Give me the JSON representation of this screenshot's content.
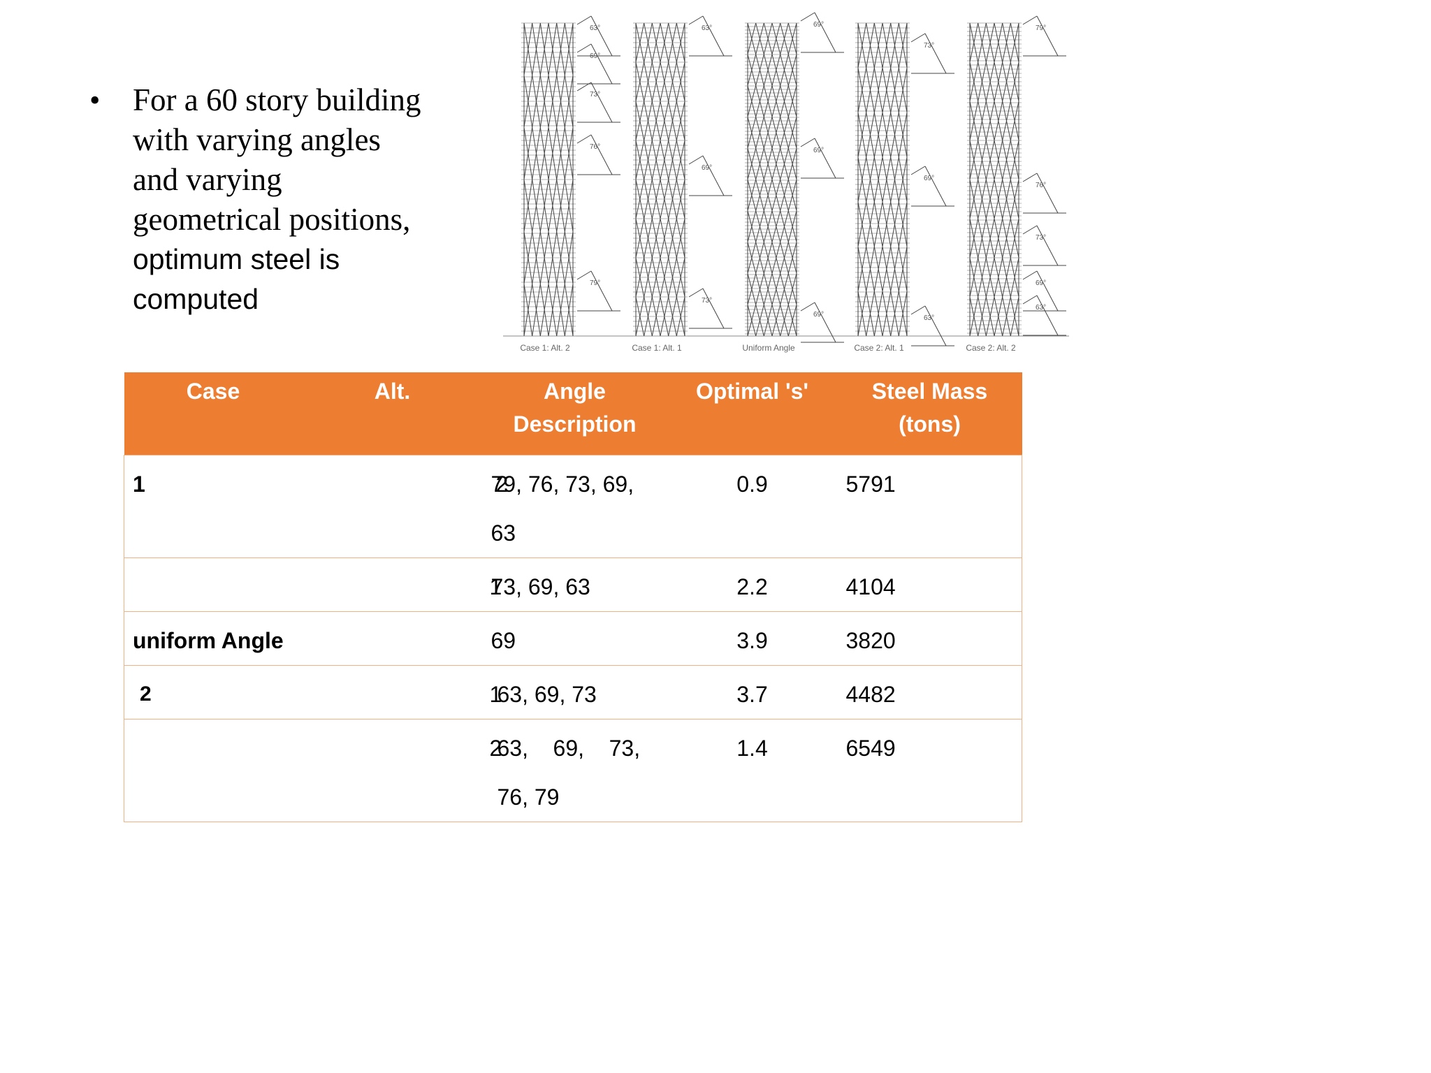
{
  "bullet": {
    "line1": "For a 60 story building",
    "line2": "with varying angles",
    "line3": "and varying",
    "line4": "geometrical positions,",
    "line5": "optimum steel is",
    "line6": "computed"
  },
  "diagram": {
    "towers": [
      {
        "label": "Case 1: Alt. 2",
        "angles": [
          "63°",
          "69°",
          "73°",
          "76°",
          "79°"
        ]
      },
      {
        "label": "Case 1: Alt. 1",
        "angles": [
          "63°",
          "69°",
          "73°"
        ]
      },
      {
        "label": "Uniform Angle",
        "angles": [
          "69°",
          "69°",
          "69°"
        ]
      },
      {
        "label": "Case 2: Alt. 1",
        "angles": [
          "73°",
          "69°",
          "63°"
        ]
      },
      {
        "label": "Case 2: Alt. 2",
        "angles": [
          "79°",
          "76°",
          "73°",
          "69°",
          "63°"
        ]
      }
    ]
  },
  "table": {
    "headers": {
      "case": "Case",
      "alt": "Alt.",
      "angle1": "Angle",
      "angle2": "Description",
      "optimal": "Optimal 's'",
      "mass1": "Steel Mass",
      "mass2": "(tons)"
    },
    "rows": [
      {
        "case": "1",
        "alt": "2",
        "angle": "79, 76, 73, 69, 63",
        "optimal": "0.9",
        "mass": "5791"
      },
      {
        "case": "",
        "alt": "1",
        "angle": "73, 69, 63",
        "optimal": "2.2",
        "mass": "4104"
      },
      {
        "case": "uniform Angle",
        "alt": "",
        "angle": "69",
        "optimal": "3.9",
        "mass": "3820"
      },
      {
        "case": "2",
        "alt": "1",
        "angle": "63, 69, 73",
        "optimal": "3.7",
        "mass": "4482"
      },
      {
        "case": "",
        "alt": "2",
        "angle": "63,    69,    73, 76, 79",
        "optimal": "1.4",
        "mass": "6549"
      }
    ]
  },
  "colors": {
    "header_bg": "#ed7d31",
    "header_text": "#ffffff",
    "border": "#f0b183",
    "drawing": "#444444"
  }
}
